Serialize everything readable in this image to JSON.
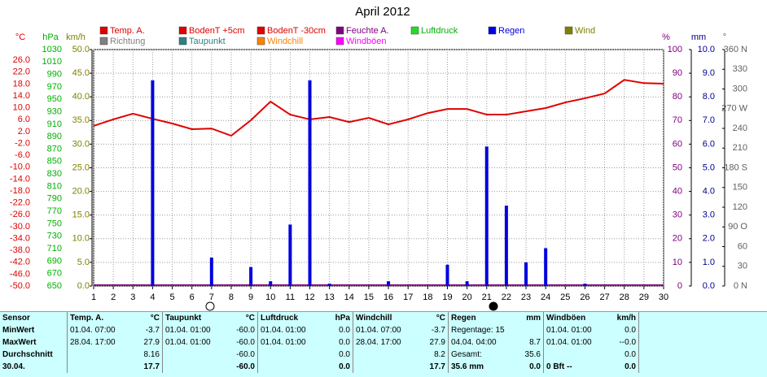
{
  "chart_data": {
    "type": "line",
    "title": "April 2012",
    "x": [
      1,
      2,
      3,
      4,
      5,
      6,
      7,
      8,
      9,
      10,
      11,
      12,
      13,
      14,
      15,
      16,
      17,
      18,
      19,
      20,
      21,
      22,
      23,
      24,
      25,
      26,
      27,
      28,
      29,
      30
    ],
    "xlim": [
      1,
      30
    ],
    "xticks": [
      1,
      2,
      3,
      4,
      5,
      6,
      7,
      8,
      9,
      10,
      11,
      12,
      13,
      14,
      15,
      16,
      17,
      18,
      19,
      20,
      21,
      22,
      23,
      24,
      25,
      26,
      27,
      28,
      29,
      30
    ],
    "axes": [
      {
        "label": "°C",
        "color": "#e00000",
        "lim": [
          -50,
          29.6
        ],
        "ticks": [
          {
            "value": 26,
            "label": "26.0"
          },
          {
            "value": 22,
            "label": "22.0"
          },
          {
            "value": 18,
            "label": "18.0"
          },
          {
            "value": 14,
            "label": "14.0"
          },
          {
            "value": 10,
            "label": "10.0"
          },
          {
            "value": 6,
            "label": "6.0"
          },
          {
            "value": 2,
            "label": "2.0"
          },
          {
            "value": -2,
            "label": "-2.0"
          },
          {
            "value": -6,
            "label": "-6.0"
          },
          {
            "value": -10,
            "label": "-10.0"
          },
          {
            "value": -14,
            "label": "-14.0"
          },
          {
            "value": -18,
            "label": "-18.0"
          },
          {
            "value": -22,
            "label": "-22.0"
          },
          {
            "value": -26,
            "label": "-26.0"
          },
          {
            "value": -30,
            "label": "-30.0"
          },
          {
            "value": -34,
            "label": "-34.0"
          },
          {
            "value": -38,
            "label": "-38.0"
          },
          {
            "value": -42,
            "label": "-42.0"
          },
          {
            "value": -46,
            "label": "-46.0"
          },
          {
            "value": -50,
            "label": "-50.0"
          }
        ]
      },
      {
        "label": "hPa",
        "color": "#00b000",
        "lim": [
          650,
          1030
        ],
        "ticks": [
          1030,
          1010,
          990,
          970,
          950,
          930,
          910,
          890,
          870,
          850,
          830,
          810,
          790,
          770,
          750,
          730,
          710,
          690,
          670,
          650
        ]
      },
      {
        "label": "km/h",
        "color": "#808000",
        "lim": [
          0,
          50
        ],
        "ticks": [
          {
            "value": 50,
            "label": "50.0"
          },
          {
            "value": 45,
            "label": "45.0"
          },
          {
            "value": 40,
            "label": "40.0"
          },
          {
            "value": 35,
            "label": "35.0"
          },
          {
            "value": 30,
            "label": "30.0"
          },
          {
            "value": 25,
            "label": "25.0"
          },
          {
            "value": 20,
            "label": "20.0"
          },
          {
            "value": 15,
            "label": "15.0"
          },
          {
            "value": 10,
            "label": "10.0"
          },
          {
            "value": 5,
            "label": "5.0"
          },
          {
            "value": 0,
            "label": "0.0"
          }
        ]
      },
      {
        "label": "%",
        "color": "#800080",
        "lim": [
          0,
          100
        ],
        "grid": true,
        "ticks": [
          100,
          90,
          80,
          70,
          60,
          50,
          40,
          30,
          20,
          10,
          0
        ]
      },
      {
        "label": "mm",
        "color": "#000090",
        "lim": [
          0,
          10
        ],
        "ticks": [
          {
            "value": 10,
            "label": "10.0"
          },
          {
            "value": 9,
            "label": "9.0"
          },
          {
            "value": 8,
            "label": "8.0"
          },
          {
            "value": 7,
            "label": "7.0"
          },
          {
            "value": 6,
            "label": "6.0"
          },
          {
            "value": 5,
            "label": "5.0"
          },
          {
            "value": 4,
            "label": "4.0"
          },
          {
            "value": 3,
            "label": "3.0"
          },
          {
            "value": 2,
            "label": "2.0"
          },
          {
            "value": 1,
            "label": "1.0"
          },
          {
            "value": 0,
            "label": "0.0"
          }
        ]
      },
      {
        "label": "°",
        "color": "#606060",
        "lim": [
          0,
          360
        ],
        "ticks": [
          {
            "value": 360,
            "label": "360 N"
          },
          330,
          300,
          {
            "value": 270,
            "label": "270 W"
          },
          240,
          210,
          {
            "value": 180,
            "label": "180 S"
          },
          150,
          120,
          {
            "value": 90,
            "label": "90 O"
          },
          60,
          30,
          {
            "value": 0,
            "label": "0 N"
          }
        ]
      }
    ],
    "series": [
      {
        "name": "Temp. A.",
        "color": "#e00000",
        "type": "line",
        "axis": 0,
        "values": [
          3.9,
          6.1,
          8.0,
          6.3,
          4.7,
          2.8,
          3.0,
          0.6,
          5.8,
          12.1,
          7.7,
          6.1,
          6.9,
          5.2,
          6.6,
          4.4,
          6.1,
          8.2,
          9.6,
          9.6,
          7.7,
          7.7,
          8.8,
          9.9,
          11.8,
          13.2,
          14.8,
          19.4,
          18.3,
          18.1
        ]
      },
      {
        "name": "BodenT +5cm",
        "color": "#e00000"
      },
      {
        "name": "BodenT -30cm",
        "color": "#e00000"
      },
      {
        "name": "Feuchte A.",
        "color": "#800080"
      },
      {
        "name": "Luftdruck",
        "color": "#22dd22"
      },
      {
        "name": "Regen",
        "color": "#0000e0",
        "type": "bar",
        "axis": 4,
        "values": [
          0,
          0,
          0,
          8.7,
          0,
          0,
          1.2,
          0,
          0.8,
          0.2,
          2.6,
          8.7,
          0.1,
          0,
          0,
          0.2,
          0,
          0,
          0.9,
          0.2,
          5.9,
          3.4,
          1.0,
          1.6,
          0,
          0.1,
          0,
          0,
          0,
          0
        ]
      },
      {
        "name": "Wind",
        "color": "#808000"
      },
      {
        "name": "Richtung",
        "color": "#808080"
      },
      {
        "name": "Taupunkt",
        "color": "#308080"
      },
      {
        "name": "Windchill",
        "color": "#ff8000"
      },
      {
        "name": "Windböen",
        "color": "#ff00ff"
      }
    ]
  },
  "table": {
    "columns": [
      {
        "name": "Sensor"
      },
      {
        "name": "Temp. A.",
        "unit": "°C"
      },
      {
        "name": "Taupunkt",
        "unit": "°C"
      },
      {
        "name": "Luftdruck",
        "unit": "hPa"
      },
      {
        "name": "Windchill",
        "unit": "°C"
      },
      {
        "name": "Regen",
        "unit": "mm"
      },
      {
        "name": "Windböen",
        "unit": "km/h"
      }
    ],
    "rows": [
      [
        "MinWert",
        [
          "01.04. 07:00",
          "-3.7"
        ],
        [
          "01.04. 01:00",
          "-60.0"
        ],
        [
          "01.04. 01:00",
          "0.0"
        ],
        [
          "01.04. 07:00",
          "-3.7"
        ],
        [
          "Regentage: 15",
          null
        ],
        [
          "01.04. 01:00",
          "0.0"
        ]
      ],
      [
        "MaxWert",
        [
          "28.04. 17:00",
          "27.9"
        ],
        [
          "01.04. 01:00",
          "-60.0"
        ],
        [
          "01.04. 01:00",
          "0.0"
        ],
        [
          "28.04. 17:00",
          "27.9"
        ],
        [
          "04.04. 04:00",
          "8.7"
        ],
        [
          "01.04. 01:00",
          "--0.0"
        ]
      ],
      [
        "Durchschnitt",
        [
          null,
          "8.16"
        ],
        [
          null,
          "-60.0"
        ],
        [
          null,
          "0.0"
        ],
        [
          null,
          "8.2"
        ],
        [
          "Gesamt:",
          "35.6"
        ],
        [
          null,
          "0.0"
        ]
      ],
      [
        "30.04.",
        [
          null,
          "17.7"
        ],
        [
          null,
          "-60.0"
        ],
        [
          null,
          "0.0"
        ],
        [
          null,
          "17.7"
        ],
        [
          "35.6 mm",
          "0.0"
        ],
        [
          "0 Bft --",
          "0.0"
        ]
      ]
    ]
  }
}
